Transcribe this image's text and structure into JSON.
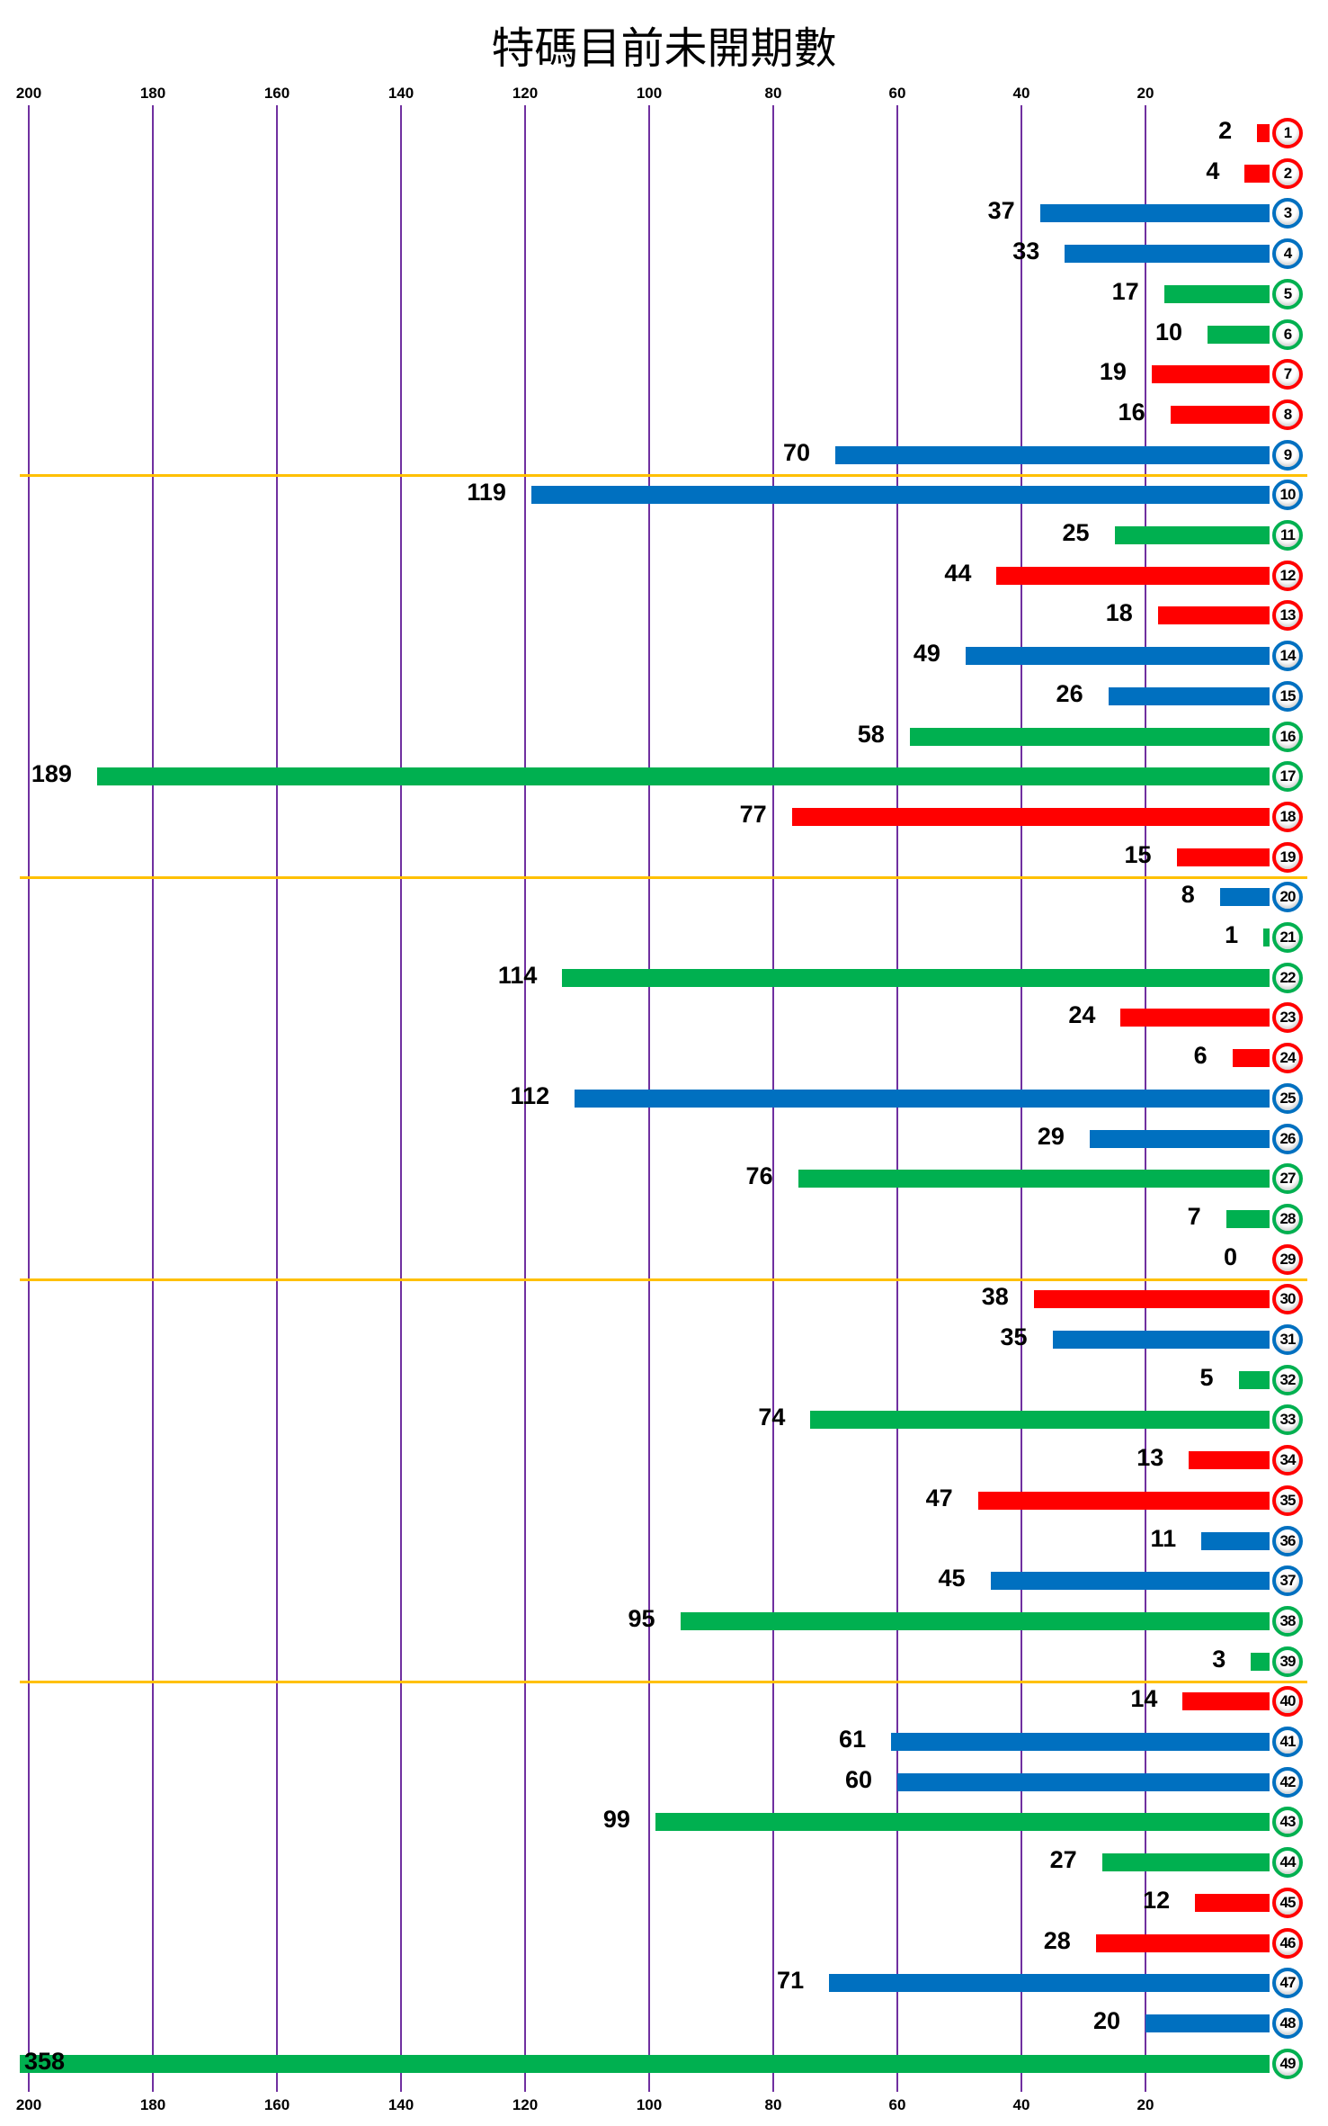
{
  "title": "特碼目前未開期數",
  "colors": {
    "red": "#FF0000",
    "blue": "#0070C0",
    "green": "#00B050",
    "gridline": "#7030A0",
    "separator": "#FFC000"
  },
  "axis": {
    "ticks": [
      "200",
      "180",
      "160",
      "140",
      "120",
      "100",
      "80",
      "60",
      "40",
      "20"
    ],
    "tick_values": [
      200,
      180,
      160,
      140,
      120,
      100,
      80,
      60,
      40,
      20
    ]
  },
  "chart_data": {
    "type": "bar",
    "orientation": "horizontal",
    "title": "特碼目前未開期數",
    "xlabel": "",
    "ylabel": "",
    "x_axis_reversed": true,
    "xlim": [
      0,
      200
    ],
    "x_ticks": [
      200,
      180,
      160,
      140,
      120,
      100,
      80,
      60,
      40,
      20
    ],
    "grid": true,
    "separators_after": [
      9,
      19,
      29,
      39
    ],
    "categories": [
      "1",
      "2",
      "3",
      "4",
      "5",
      "6",
      "7",
      "8",
      "9",
      "10",
      "11",
      "12",
      "13",
      "14",
      "15",
      "16",
      "17",
      "18",
      "19",
      "20",
      "21",
      "22",
      "23",
      "24",
      "25",
      "26",
      "27",
      "28",
      "29",
      "30",
      "31",
      "32",
      "33",
      "34",
      "35",
      "36",
      "37",
      "38",
      "39",
      "40",
      "41",
      "42",
      "43",
      "44",
      "45",
      "46",
      "47",
      "48",
      "49"
    ],
    "values": [
      2,
      4,
      37,
      33,
      17,
      10,
      19,
      16,
      70,
      119,
      25,
      44,
      18,
      49,
      26,
      58,
      189,
      77,
      15,
      8,
      1,
      114,
      24,
      6,
      112,
      29,
      76,
      7,
      0,
      38,
      35,
      5,
      74,
      13,
      47,
      11,
      45,
      95,
      3,
      14,
      61,
      60,
      99,
      27,
      12,
      28,
      71,
      20,
      358
    ],
    "bar_colors": [
      "red",
      "red",
      "blue",
      "blue",
      "green",
      "green",
      "red",
      "red",
      "blue",
      "blue",
      "green",
      "red",
      "red",
      "blue",
      "blue",
      "green",
      "green",
      "red",
      "red",
      "blue",
      "green",
      "green",
      "red",
      "red",
      "blue",
      "blue",
      "green",
      "green",
      "red",
      "red",
      "blue",
      "green",
      "green",
      "red",
      "red",
      "blue",
      "blue",
      "green",
      "green",
      "red",
      "blue",
      "blue",
      "green",
      "green",
      "red",
      "red",
      "blue",
      "blue",
      "green"
    ]
  }
}
